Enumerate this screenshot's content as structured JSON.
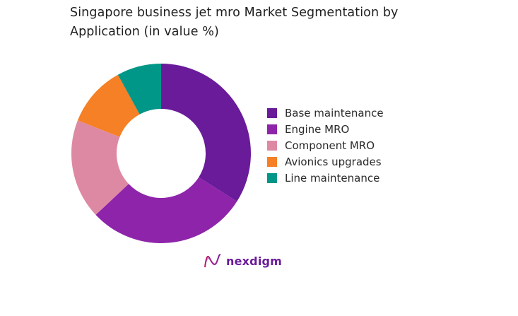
{
  "header": {
    "title": "Singapore business jet mro Market Segmentation by Application (in value %)"
  },
  "chart_data": {
    "type": "pie",
    "subtype": "donut",
    "title": "Singapore business jet mro Market Segmentation by Application (in value %)",
    "categories": [
      "Base maintenance",
      "Engine MRO",
      "Component MRO",
      "Avionics upgrades",
      "Line maintenance"
    ],
    "values": [
      34,
      29,
      18,
      11,
      8
    ],
    "colors": [
      "#6a1b9a",
      "#8e24aa",
      "#de89a3",
      "#f58025",
      "#009688"
    ],
    "start_angle_deg": 0,
    "direction": "clockwise",
    "legend_position": "right"
  },
  "legend": {
    "items": [
      {
        "label": "Base maintenance",
        "color": "#6a1b9a"
      },
      {
        "label": "Engine MRO",
        "color": "#8e24aa"
      },
      {
        "label": "Component MRO",
        "color": "#de89a3"
      },
      {
        "label": "Avionics upgrades",
        "color": "#f58025"
      },
      {
        "label": "Line maintenance",
        "color": "#009688"
      }
    ]
  },
  "branding": {
    "logo_text": "nexdigm",
    "logo_color": "#6a1b9a"
  }
}
